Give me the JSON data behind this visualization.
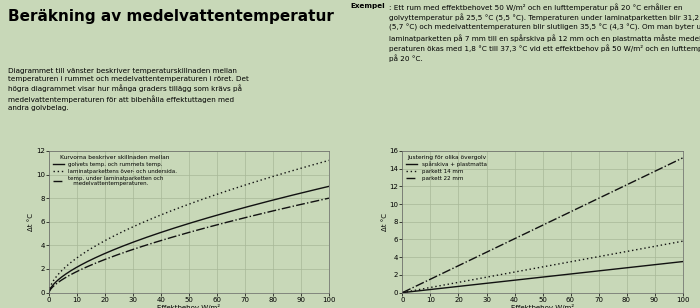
{
  "background_color": "#c8d8b8",
  "title": "Beräkning av medelvattentemperatur",
  "title_fontsize": 11,
  "text_left": "Diagrammet till vänster beskriver temperaturskillnaden mellan\ntemperaturen i rummet och medelvattentemperaturen i röret. Det\nhögra diagrammet visar hur många graders tillägg som krävs på\nmedelvattentemperaturen för att bibehålla effektuttagen med\nandra golvbelag.",
  "text_right_bold": "Exempel",
  "text_right": ": Ett rum med effektbehovet 50 W/m² och en lufttemperatur på 20 °C erhåller en golvyttemperatur på 25,5 °C (5,5 °C). Temperaturen under laminatparketten blir 31,2 °C (5,7 °C) och medelvattentemperaturen blir slutligen 35,5 °C (4,3 °C). Om man byter ut laminatparketten på 7 mm till en spårskiva på 12 mm och en plastmatta måste medeltem-peraturen ökas med 1,8 °C till 37,3 °C vid ett effektbehov på 50 W/m² och en lufttemperatur på 20 °C.",
  "chart_bg": "#c8d8b8",
  "grid_color": "#a8b898",
  "line_color": "#111111",
  "left_chart": {
    "ylabel": "Δt °C",
    "xlabel": "Effektbehov W/m²",
    "xlim": [
      0,
      100
    ],
    "ylim": [
      0,
      12
    ],
    "yticks": [
      0,
      2,
      4,
      6,
      8,
      10,
      12
    ],
    "xticks": [
      0,
      10,
      20,
      30,
      40,
      50,
      60,
      70,
      80,
      90,
      100
    ],
    "legend_title": "Kurvorna beskriver skillnaden mellan",
    "legend": [
      "golvets temp. och rummets temp.",
      "laminatparkettens över- och undersida.",
      "temp. under laminatparketten och\n   medelvattentemperaturen."
    ],
    "curve1_end": 9.0,
    "curve2_end": 11.2,
    "curve3_end": 8.0,
    "curve1_power": 0.62,
    "curve2_power": 0.58,
    "curve3_power": 0.65
  },
  "right_chart": {
    "ylabel": "Δt °C",
    "xlabel": "Effektbehov W/m²",
    "xlim": [
      0,
      100
    ],
    "ylim": [
      0,
      16
    ],
    "yticks": [
      0,
      2,
      4,
      6,
      8,
      10,
      12,
      14,
      16
    ],
    "xticks": [
      0,
      10,
      20,
      30,
      40,
      50,
      60,
      70,
      80,
      90,
      100
    ],
    "legend_title": "Justering för olika övergolv",
    "legend": [
      "spårskiva + plastmatta",
      "parkett 14 mm",
      "parkett 22 mm"
    ],
    "line1_end": 3.5,
    "line2_end": 5.8,
    "line3_end": 15.2
  }
}
